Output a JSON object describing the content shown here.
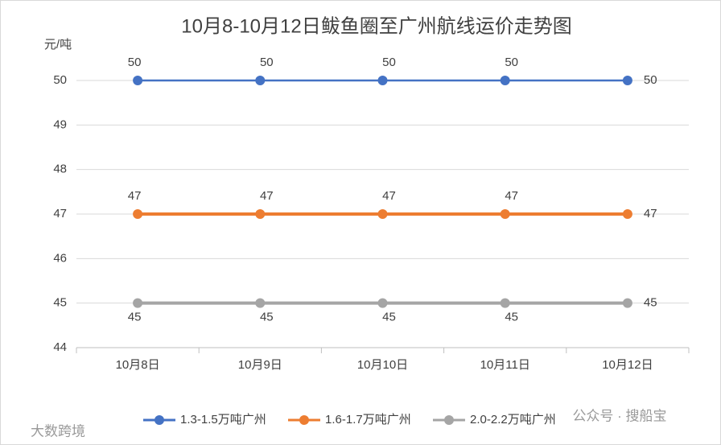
{
  "chart_data": {
    "type": "line",
    "title": "10月8-10月12日鲅鱼圈至广州航线运价走势图",
    "y_label": "元/吨",
    "categories": [
      "10月8日",
      "10月9日",
      "10月10日",
      "10月11日",
      "10月12日"
    ],
    "series": [
      {
        "name": "1.3-1.5万吨广州",
        "color": "#4472c4",
        "values": [
          50,
          50,
          50,
          50,
          50
        ]
      },
      {
        "name": "1.6-1.7万吨广州",
        "color": "#ed7d31",
        "values": [
          47,
          47,
          47,
          47,
          47
        ]
      },
      {
        "name": "2.0-2.2万吨广州",
        "color": "#a5a5a5",
        "values": [
          45,
          45,
          45,
          45,
          45
        ]
      }
    ],
    "ylim": [
      44,
      50
    ],
    "yticks": [
      44,
      45,
      46,
      47,
      48,
      49,
      50
    ],
    "grid": true,
    "legend": "bottom",
    "watermarks": [
      "公众号 · 搜船宝",
      "大数跨境"
    ]
  }
}
